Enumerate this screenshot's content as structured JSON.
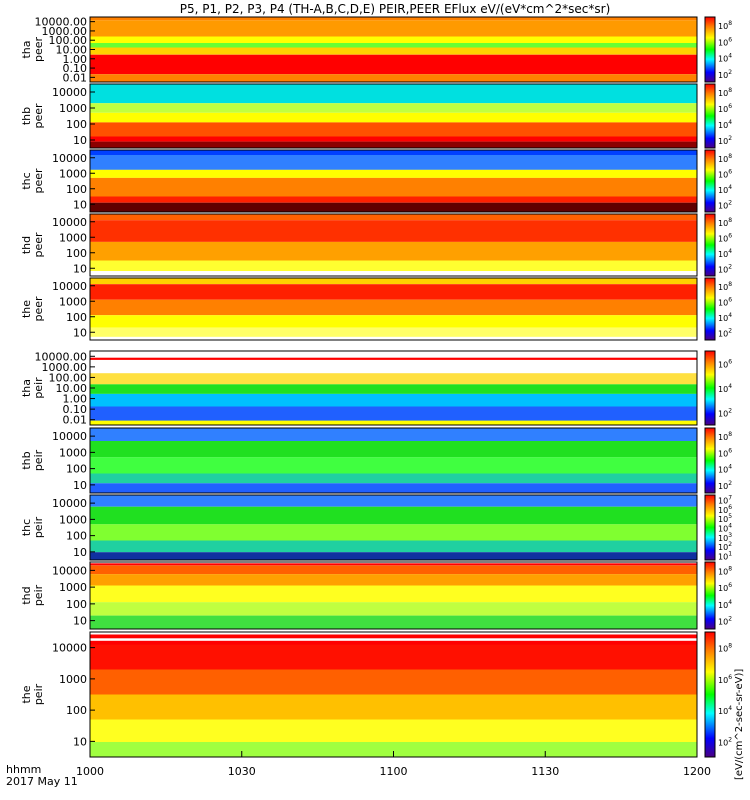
{
  "title": "P5, P1, P2, P3, P4 (TH-A,B,C,D,E) PEIR,PEER EFlux eV/(eV*cm^2*sec*sr)",
  "x_axis": {
    "label_line1": "hhmm",
    "label_line2": "2017 May 11",
    "ticks": [
      "1000",
      "1030",
      "1100",
      "1130",
      "1200"
    ]
  },
  "colorbar_unit": "[eV/(cm^2-sec-sr-eV)]",
  "chart_data": {
    "type": "heatmap",
    "x_range": [
      "1000",
      "1200"
    ],
    "panels": [
      {
        "probe": "tha",
        "species": "peer",
        "y_ticks": [
          "10000.00",
          "1000.00",
          "100.00",
          "10.00",
          "1.00",
          "0.10",
          "0.01"
        ],
        "cbar_ticks": [
          "10^8",
          "10^6",
          "10^4",
          "10^2"
        ]
      },
      {
        "probe": "thb",
        "species": "peer",
        "y_ticks": [
          "10000",
          "1000",
          "100",
          "10"
        ],
        "cbar_ticks": [
          "10^8",
          "10^6",
          "10^4",
          "10^2"
        ]
      },
      {
        "probe": "thc",
        "species": "peer",
        "y_ticks": [
          "10000",
          "1000",
          "100",
          "10"
        ],
        "cbar_ticks": [
          "10^8",
          "10^6",
          "10^4",
          "10^2"
        ]
      },
      {
        "probe": "thd",
        "species": "peer",
        "y_ticks": [
          "10000",
          "1000",
          "100",
          "10"
        ],
        "cbar_ticks": [
          "10^8",
          "10^6",
          "10^4",
          "10^2"
        ]
      },
      {
        "probe": "the",
        "species": "peer",
        "y_ticks": [
          "10000",
          "1000",
          "100",
          "10"
        ],
        "cbar_ticks": [
          "10^8",
          "10^6",
          "10^4",
          "10^2"
        ]
      },
      {
        "probe": "tha",
        "species": "peir",
        "y_ticks": [
          "10000.00",
          "1000.00",
          "100.00",
          "10.00",
          "1.00",
          "0.10",
          "0.01"
        ],
        "cbar_ticks": [
          "10^6",
          "10^4",
          "10^2"
        ]
      },
      {
        "probe": "thb",
        "species": "peir",
        "y_ticks": [
          "10000",
          "1000",
          "100",
          "10"
        ],
        "cbar_ticks": [
          "10^8",
          "10^6",
          "10^4",
          "10^2"
        ]
      },
      {
        "probe": "thc",
        "species": "peir",
        "y_ticks": [
          "10000",
          "1000",
          "100",
          "10"
        ],
        "cbar_ticks": [
          "10^7",
          "10^6",
          "10^5",
          "10^4",
          "10^3",
          "10^2",
          "10^1"
        ]
      },
      {
        "probe": "thd",
        "species": "peir",
        "y_ticks": [
          "10000",
          "1000",
          "100",
          "10"
        ],
        "cbar_ticks": [
          "10^8",
          "10^6",
          "10^4",
          "10^2"
        ]
      },
      {
        "probe": "the",
        "species": "peir",
        "y_ticks": [
          "10000",
          "1000",
          "100",
          "10"
        ],
        "cbar_ticks": [
          "10^8",
          "10^6",
          "10^4",
          "10^2"
        ]
      }
    ]
  }
}
